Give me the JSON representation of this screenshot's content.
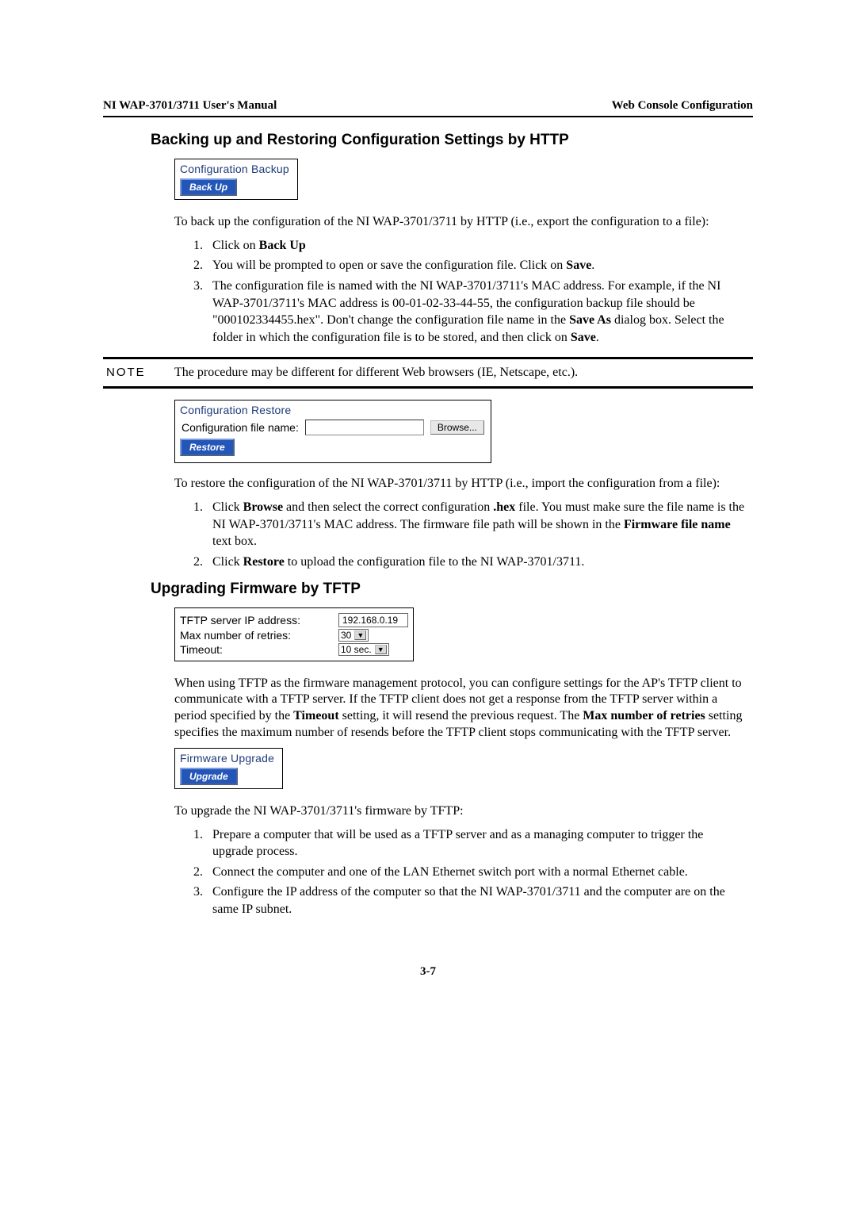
{
  "header": {
    "left": "NI WAP-3701/3711 User's Manual",
    "right": "Web Console Configuration"
  },
  "section1": {
    "title": "Backing up and Restoring Configuration Settings by HTTP",
    "backup_box_title": "Configuration Backup",
    "backup_btn": "Back Up",
    "intro": "To back up the configuration of the NI WAP-3701/3711 by HTTP (i.e., export the configuration to a file):",
    "li1_pre": "Click on ",
    "li1_b": "Back Up",
    "li2_pre": "You will be prompted to open or save the configuration file. Click on ",
    "li2_b": "Save",
    "li2_post": ".",
    "li3_a": "The configuration file is named with the NI WAP-3701/3711's MAC address. For example, if the NI WAP-3701/3711's MAC address is 00-01-02-33-44-55, the configuration backup file should be \"000102334455.hex\". Don't change the configuration file name in the ",
    "li3_b1": "Save As",
    "li3_c": " dialog box. Select the folder in which the configuration file is to be stored, and then click on ",
    "li3_b2": "Save",
    "li3_d": "."
  },
  "note": {
    "label": "NOTE",
    "text": "The procedure may be different for different Web browsers (IE, Netscape, etc.)."
  },
  "restore": {
    "box_title": "Configuration Restore",
    "file_label": "Configuration file name:",
    "browse_btn": "Browse...",
    "restore_btn": "Restore",
    "intro": "To restore the configuration of the NI WAP-3701/3711 by HTTP (i.e., import the configuration from a file):",
    "li1_a": "Click ",
    "li1_b1": "Browse",
    "li1_c": " and then select the correct configuration ",
    "li1_b2": ".hex",
    "li1_d": " file. You must make sure the file name is the NI WAP-3701/3711's MAC address. The firmware file path will be shown in the ",
    "li1_b3": "Firmware file name",
    "li1_e": " text box.",
    "li2_a": "Click ",
    "li2_b": "Restore",
    "li2_c": " to upload the configuration file to the NI WAP-3701/3711."
  },
  "section2": {
    "title": "Upgrading Firmware by TFTP",
    "tftp_ip_label": "TFTP server IP address:",
    "tftp_ip_value": "192.168.0.19",
    "retries_label": "Max number of retries:",
    "retries_value": "30",
    "timeout_label": "Timeout:",
    "timeout_value": "10 sec.",
    "para_a": "When using TFTP as the firmware management protocol, you can configure settings for the AP's TFTP client to communicate with a TFTP server. If the TFTP client does not get a response from the TFTP server within a period specified by the ",
    "para_b1": "Timeout",
    "para_c": " setting, it will resend the previous request. The ",
    "para_b2": "Max number of retries",
    "para_d": " setting specifies the maximum number of resends before the TFTP client stops communicating with the TFTP server.",
    "upgrade_box_title": "Firmware Upgrade",
    "upgrade_btn": "Upgrade",
    "upgrade_intro": "To upgrade the NI WAP-3701/3711's firmware by TFTP:",
    "uli1": "Prepare a computer that will be used as a TFTP server and as a managing computer to trigger the upgrade process.",
    "uli2": "Connect the computer and one of the LAN Ethernet switch port with a normal Ethernet cable.",
    "uli3": "Configure the IP address of the computer so that the NI WAP-3701/3711 and the computer are on the same IP subnet."
  },
  "footer": {
    "page": "3-7"
  }
}
